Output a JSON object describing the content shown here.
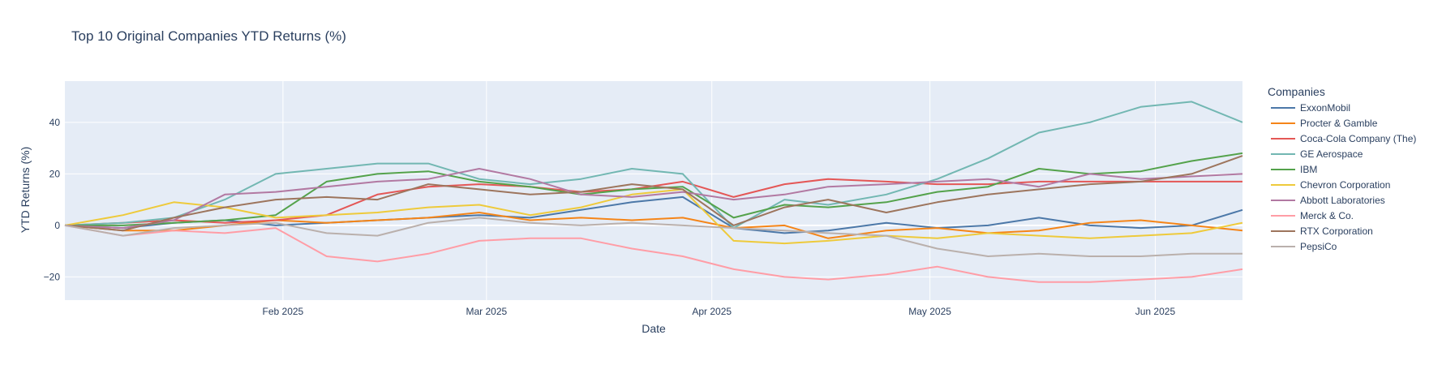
{
  "chart_data": {
    "type": "line",
    "title": "Top 10 Original Companies YTD Returns (%)",
    "xlabel": "Date",
    "ylabel": "YTD Returns (%)",
    "legend_title": "Companies",
    "legend_position": "right",
    "grid": true,
    "xlim": [
      "2025-01-02",
      "2025-06-13"
    ],
    "ylim": [
      -29,
      56
    ],
    "x_ticks": [
      {
        "date": "2025-02-01",
        "label": "Feb 2025"
      },
      {
        "date": "2025-03-01",
        "label": "Mar 2025"
      },
      {
        "date": "2025-04-01",
        "label": "Apr 2025"
      },
      {
        "date": "2025-05-01",
        "label": "May 2025"
      },
      {
        "date": "2025-06-01",
        "label": "Jun 2025"
      }
    ],
    "y_ticks": [
      -20,
      0,
      20,
      40
    ],
    "x": [
      "2025-01-02",
      "2025-01-10",
      "2025-01-17",
      "2025-01-24",
      "2025-01-31",
      "2025-02-07",
      "2025-02-14",
      "2025-02-21",
      "2025-02-28",
      "2025-03-07",
      "2025-03-14",
      "2025-03-21",
      "2025-03-28",
      "2025-04-04",
      "2025-04-11",
      "2025-04-17",
      "2025-04-25",
      "2025-05-02",
      "2025-05-09",
      "2025-05-16",
      "2025-05-23",
      "2025-05-30",
      "2025-06-06",
      "2025-06-13"
    ],
    "series": [
      {
        "name": "ExxonMobil",
        "color": "#4c78a8",
        "values": [
          0,
          -1,
          1,
          2,
          0,
          1,
          2,
          3,
          4,
          3,
          6,
          9,
          11,
          -1,
          -3,
          -2,
          1,
          -1,
          0,
          3,
          0,
          -1,
          0,
          6
        ]
      },
      {
        "name": "Procter & Gamble",
        "color": "#f58518",
        "values": [
          0,
          -2,
          -2,
          0,
          2,
          1,
          2,
          3,
          5,
          2,
          3,
          2,
          3,
          -1,
          0,
          -5,
          -2,
          -1,
          -3,
          -2,
          1,
          2,
          0,
          -2
        ]
      },
      {
        "name": "Coca-Cola Company (The)",
        "color": "#e45756",
        "values": [
          0,
          1,
          2,
          1,
          2,
          4,
          12,
          15,
          16,
          15,
          13,
          14,
          17,
          11,
          16,
          18,
          17,
          16,
          16,
          17,
          17,
          17,
          17,
          17
        ]
      },
      {
        "name": "GE Aerospace",
        "color": "#72b7b2",
        "values": [
          0,
          1,
          3,
          10,
          20,
          22,
          24,
          24,
          18,
          16,
          18,
          22,
          20,
          -1,
          10,
          8,
          12,
          18,
          26,
          36,
          40,
          46,
          48,
          40
        ]
      },
      {
        "name": "IBM",
        "color": "#54a24b",
        "values": [
          0,
          0,
          1,
          2,
          4,
          17,
          20,
          21,
          17,
          15,
          12,
          14,
          15,
          3,
          8,
          7,
          9,
          13,
          15,
          22,
          20,
          21,
          25,
          28
        ]
      },
      {
        "name": "Chevron Corporation",
        "color": "#eeca3b",
        "values": [
          0,
          4,
          9,
          7,
          3,
          4,
          5,
          7,
          8,
          4,
          7,
          12,
          14,
          -6,
          -7,
          -6,
          -4,
          -5,
          -3,
          -4,
          -5,
          -4,
          -3,
          1
        ]
      },
      {
        "name": "Abbott Laboratories",
        "color": "#b279a2",
        "values": [
          0,
          -1,
          2,
          12,
          13,
          15,
          17,
          18,
          22,
          18,
          12,
          11,
          13,
          10,
          12,
          15,
          16,
          17,
          18,
          15,
          20,
          18,
          19,
          20
        ]
      },
      {
        "name": "Merck & Co.",
        "color": "#ff9da6",
        "values": [
          0,
          -4,
          -2,
          -3,
          -1,
          -12,
          -14,
          -11,
          -6,
          -5,
          -5,
          -9,
          -12,
          -17,
          -20,
          -21,
          -19,
          -16,
          -20,
          -22,
          -22,
          -21,
          -20,
          -17
        ]
      },
      {
        "name": "RTX Corporation",
        "color": "#9d755d",
        "values": [
          0,
          -2,
          3,
          7,
          10,
          11,
          10,
          16,
          14,
          12,
          13,
          16,
          14,
          0,
          7,
          10,
          5,
          9,
          12,
          14,
          16,
          17,
          20,
          27
        ]
      },
      {
        "name": "PepsiCo",
        "color": "#bab0ac",
        "values": [
          0,
          -4,
          -1,
          0,
          1,
          -3,
          -4,
          1,
          3,
          1,
          0,
          1,
          0,
          -1,
          -2,
          -3,
          -4,
          -9,
          -12,
          -11,
          -12,
          -12,
          -11,
          -11
        ]
      }
    ]
  }
}
